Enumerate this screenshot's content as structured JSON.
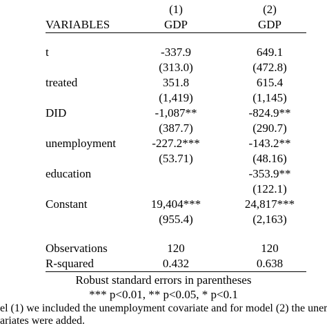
{
  "header": {
    "col1_num": "(1)",
    "col2_num": "(2)",
    "variables_label": "VARIABLES",
    "col1_dep": "GDP",
    "col2_dep": "GDP"
  },
  "rows": [
    {
      "label": "t",
      "c1": "-337.9",
      "c2": "649.1",
      "se1": "(313.0)",
      "se2": "(472.8)"
    },
    {
      "label": "treated",
      "c1": "351.8",
      "c2": "615.4",
      "se1": "(1,419)",
      "se2": "(1,145)"
    },
    {
      "label": "DID",
      "c1": "-1,087**",
      "c2": "-824.9**",
      "se1": "(387.7)",
      "se2": "(290.7)"
    },
    {
      "label": "unemployment",
      "c1": "-227.2***",
      "c2": "-143.2**",
      "se1": "(53.71)",
      "se2": "(48.16)"
    },
    {
      "label": "education",
      "c1": "",
      "c2": "-353.9**",
      "se1": "",
      "se2": "(122.1)"
    },
    {
      "label": "Constant",
      "c1": "19,404***",
      "c2": "24,817***",
      "se1": "(955.4)",
      "se2": "(2,163)"
    }
  ],
  "stats": [
    {
      "label": "Observations",
      "c1": "120",
      "c2": "120"
    },
    {
      "label": "R-squared",
      "c1": "0.432",
      "c2": "0.638"
    }
  ],
  "notes": {
    "robust": "Robust standard errors in parentheses",
    "signif": "*** p<0.01, ** p<0.05, * p<0.1",
    "caption_line1": "el (1) we included the unemployment covariate and for model (2) the unem",
    "caption_line2": "ariates were added."
  }
}
